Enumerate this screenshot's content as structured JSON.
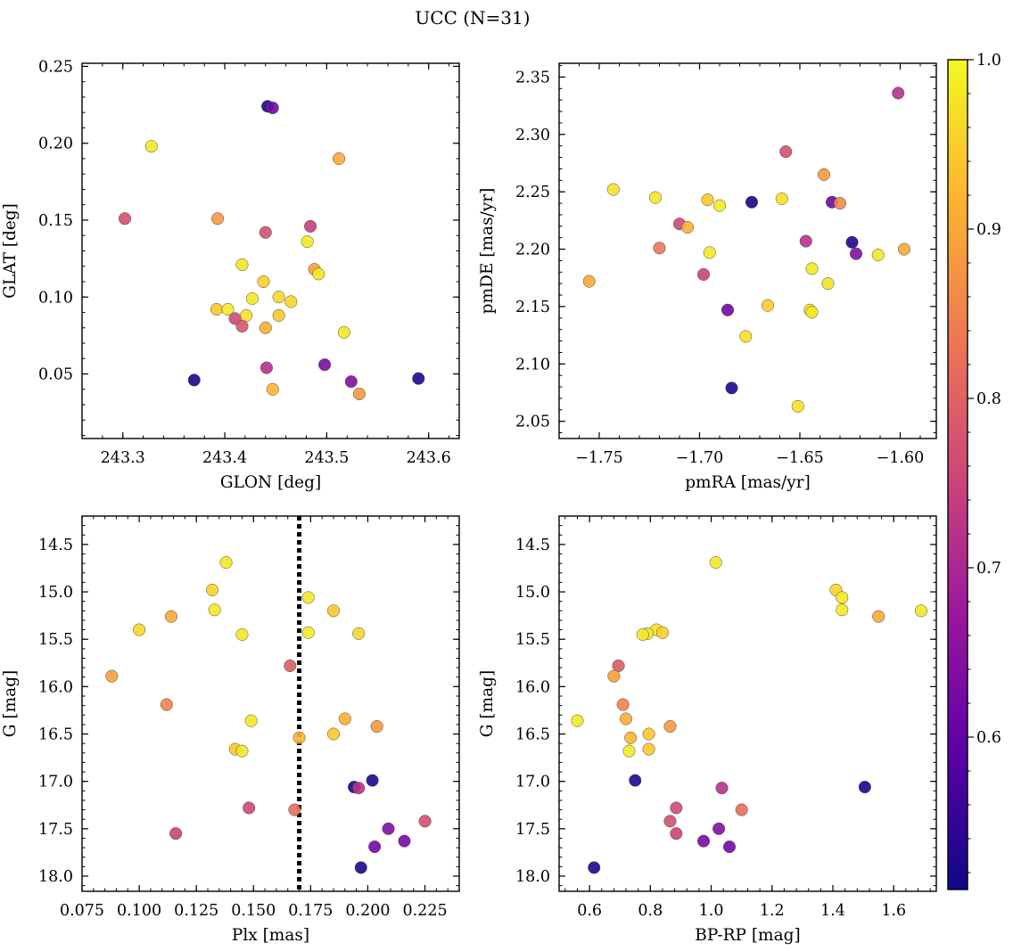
{
  "title": "UCC (N=31)",
  "colorbar": {
    "range": [
      0.51,
      1.0
    ],
    "ticks": [
      0.6,
      0.7,
      0.8,
      0.9,
      1.0
    ],
    "tick_labels": [
      "0.6",
      "0.7",
      "0.8",
      "0.9",
      "1.0"
    ],
    "colormap": [
      "#0d0887",
      "#5c01a6",
      "#9c179e",
      "#cc4778",
      "#ed7953",
      "#fdb42f",
      "#f0f921"
    ]
  },
  "chart_data": [
    {
      "type": "scatter",
      "xlabel": "GLON [deg]",
      "ylabel": "GLAT [deg]",
      "xlim": [
        243.26,
        243.63
      ],
      "ylim": [
        0.008,
        0.252
      ],
      "xticks": [
        243.3,
        243.4,
        243.5,
        243.6
      ],
      "xtick_labels": [
        "243.3",
        "243.4",
        "243.5",
        "243.6"
      ],
      "yticks": [
        0.05,
        0.1,
        0.15,
        0.2,
        0.25
      ],
      "ytick_labels": [
        "0.05",
        "0.10",
        "0.15",
        "0.20",
        "0.25"
      ],
      "points": [
        {
          "x": 243.442,
          "y": 0.224,
          "c": 0.52
        },
        {
          "x": 243.447,
          "y": 0.223,
          "c": 0.62
        },
        {
          "x": 243.328,
          "y": 0.198,
          "c": 0.98
        },
        {
          "x": 243.512,
          "y": 0.19,
          "c": 0.9
        },
        {
          "x": 243.302,
          "y": 0.151,
          "c": 0.77
        },
        {
          "x": 243.393,
          "y": 0.151,
          "c": 0.88
        },
        {
          "x": 243.484,
          "y": 0.146,
          "c": 0.74
        },
        {
          "x": 243.44,
          "y": 0.142,
          "c": 0.77
        },
        {
          "x": 243.481,
          "y": 0.136,
          "c": 0.98
        },
        {
          "x": 243.417,
          "y": 0.121,
          "c": 0.98
        },
        {
          "x": 243.488,
          "y": 0.118,
          "c": 0.89
        },
        {
          "x": 243.492,
          "y": 0.115,
          "c": 0.98
        },
        {
          "x": 243.438,
          "y": 0.11,
          "c": 0.95
        },
        {
          "x": 243.453,
          "y": 0.1,
          "c": 0.96
        },
        {
          "x": 243.427,
          "y": 0.099,
          "c": 0.98
        },
        {
          "x": 243.465,
          "y": 0.097,
          "c": 0.96
        },
        {
          "x": 243.392,
          "y": 0.092,
          "c": 0.94
        },
        {
          "x": 243.403,
          "y": 0.092,
          "c": 0.98
        },
        {
          "x": 243.421,
          "y": 0.088,
          "c": 0.97
        },
        {
          "x": 243.453,
          "y": 0.088,
          "c": 0.94
        },
        {
          "x": 243.41,
          "y": 0.086,
          "c": 0.76
        },
        {
          "x": 243.417,
          "y": 0.081,
          "c": 0.78
        },
        {
          "x": 243.44,
          "y": 0.08,
          "c": 0.91
        },
        {
          "x": 243.517,
          "y": 0.077,
          "c": 0.98
        },
        {
          "x": 243.498,
          "y": 0.056,
          "c": 0.63
        },
        {
          "x": 243.441,
          "y": 0.054,
          "c": 0.72
        },
        {
          "x": 243.37,
          "y": 0.046,
          "c": 0.52
        },
        {
          "x": 243.524,
          "y": 0.045,
          "c": 0.64
        },
        {
          "x": 243.59,
          "y": 0.047,
          "c": 0.53
        },
        {
          "x": 243.447,
          "y": 0.04,
          "c": 0.92
        },
        {
          "x": 243.532,
          "y": 0.037,
          "c": 0.88
        }
      ]
    },
    {
      "type": "scatter",
      "xlabel": "pmRA [mas/yr]",
      "ylabel": "pmDE [mas/yr]",
      "xlim": [
        -1.77,
        -1.582
      ],
      "ylim": [
        2.035,
        2.362
      ],
      "xticks": [
        -1.75,
        -1.7,
        -1.65,
        -1.6
      ],
      "xtick_labels": [
        "−1.75",
        "−1.70",
        "−1.65",
        "−1.60"
      ],
      "yticks": [
        2.05,
        2.1,
        2.15,
        2.2,
        2.25,
        2.3,
        2.35
      ],
      "ytick_labels": [
        "2.05",
        "2.10",
        "2.15",
        "2.20",
        "2.25",
        "2.30",
        "2.35"
      ],
      "points": [
        {
          "x": -1.601,
          "y": 2.336,
          "c": 0.72
        },
        {
          "x": -1.657,
          "y": 2.285,
          "c": 0.77
        },
        {
          "x": -1.638,
          "y": 2.265,
          "c": 0.88
        },
        {
          "x": -1.743,
          "y": 2.252,
          "c": 0.97
        },
        {
          "x": -1.722,
          "y": 2.245,
          "c": 0.98
        },
        {
          "x": -1.659,
          "y": 2.244,
          "c": 0.97
        },
        {
          "x": -1.696,
          "y": 2.243,
          "c": 0.94
        },
        {
          "x": -1.674,
          "y": 2.241,
          "c": 0.52
        },
        {
          "x": -1.634,
          "y": 2.241,
          "c": 0.62
        },
        {
          "x": -1.63,
          "y": 2.24,
          "c": 0.86
        },
        {
          "x": -1.69,
          "y": 2.238,
          "c": 0.98
        },
        {
          "x": -1.71,
          "y": 2.222,
          "c": 0.76
        },
        {
          "x": -1.706,
          "y": 2.219,
          "c": 0.91
        },
        {
          "x": -1.647,
          "y": 2.207,
          "c": 0.72
        },
        {
          "x": -1.624,
          "y": 2.206,
          "c": 0.53
        },
        {
          "x": -1.72,
          "y": 2.201,
          "c": 0.83
        },
        {
          "x": -1.598,
          "y": 2.2,
          "c": 0.9
        },
        {
          "x": -1.695,
          "y": 2.197,
          "c": 0.98
        },
        {
          "x": -1.622,
          "y": 2.196,
          "c": 0.64
        },
        {
          "x": -1.611,
          "y": 2.195,
          "c": 0.98
        },
        {
          "x": -1.644,
          "y": 2.183,
          "c": 0.98
        },
        {
          "x": -1.698,
          "y": 2.178,
          "c": 0.75
        },
        {
          "x": -1.755,
          "y": 2.172,
          "c": 0.9
        },
        {
          "x": -1.636,
          "y": 2.17,
          "c": 0.97
        },
        {
          "x": -1.666,
          "y": 2.151,
          "c": 0.95
        },
        {
          "x": -1.686,
          "y": 2.147,
          "c": 0.62
        },
        {
          "x": -1.645,
          "y": 2.147,
          "c": 0.97
        },
        {
          "x": -1.644,
          "y": 2.145,
          "c": 0.98
        },
        {
          "x": -1.677,
          "y": 2.124,
          "c": 0.97
        },
        {
          "x": -1.684,
          "y": 2.079,
          "c": 0.53
        },
        {
          "x": -1.651,
          "y": 2.063,
          "c": 0.97
        }
      ]
    },
    {
      "type": "scatter",
      "xlabel": "Plx [mas]",
      "ylabel": "G [mag]",
      "xlim": [
        0.075,
        0.24
      ],
      "ylim": [
        18.16,
        14.2
      ],
      "reference_line_x": 0.17,
      "xticks": [
        0.075,
        0.1,
        0.125,
        0.15,
        0.175,
        0.2,
        0.225
      ],
      "xtick_labels": [
        "0.075",
        "0.100",
        "0.125",
        "0.150",
        "0.175",
        "0.200",
        "0.225"
      ],
      "yticks": [
        14.5,
        15.0,
        15.5,
        16.0,
        16.5,
        17.0,
        17.5,
        18.0
      ],
      "ytick_labels": [
        "14.5",
        "15.0",
        "15.5",
        "16.0",
        "16.5",
        "17.0",
        "17.5",
        "18.0"
      ],
      "points": [
        {
          "x": 0.138,
          "y": 14.69,
          "c": 0.98
        },
        {
          "x": 0.132,
          "y": 14.98,
          "c": 0.96
        },
        {
          "x": 0.174,
          "y": 15.06,
          "c": 0.98
        },
        {
          "x": 0.133,
          "y": 15.19,
          "c": 0.98
        },
        {
          "x": 0.185,
          "y": 15.2,
          "c": 0.94
        },
        {
          "x": 0.114,
          "y": 15.26,
          "c": 0.9
        },
        {
          "x": 0.1,
          "y": 15.4,
          "c": 0.96
        },
        {
          "x": 0.174,
          "y": 15.43,
          "c": 0.98
        },
        {
          "x": 0.196,
          "y": 15.44,
          "c": 0.96
        },
        {
          "x": 0.145,
          "y": 15.45,
          "c": 0.98
        },
        {
          "x": 0.166,
          "y": 15.78,
          "c": 0.79
        },
        {
          "x": 0.088,
          "y": 15.89,
          "c": 0.89
        },
        {
          "x": 0.112,
          "y": 16.19,
          "c": 0.85
        },
        {
          "x": 0.19,
          "y": 16.34,
          "c": 0.91
        },
        {
          "x": 0.149,
          "y": 16.36,
          "c": 0.98
        },
        {
          "x": 0.204,
          "y": 16.42,
          "c": 0.88
        },
        {
          "x": 0.185,
          "y": 16.5,
          "c": 0.94
        },
        {
          "x": 0.17,
          "y": 16.54,
          "c": 0.92
        },
        {
          "x": 0.142,
          "y": 16.66,
          "c": 0.94
        },
        {
          "x": 0.145,
          "y": 16.68,
          "c": 0.98
        },
        {
          "x": 0.202,
          "y": 16.99,
          "c": 0.53
        },
        {
          "x": 0.194,
          "y": 17.06,
          "c": 0.52
        },
        {
          "x": 0.196,
          "y": 17.07,
          "c": 0.72
        },
        {
          "x": 0.148,
          "y": 17.28,
          "c": 0.76
        },
        {
          "x": 0.168,
          "y": 17.3,
          "c": 0.82
        },
        {
          "x": 0.225,
          "y": 17.42,
          "c": 0.77
        },
        {
          "x": 0.209,
          "y": 17.5,
          "c": 0.64
        },
        {
          "x": 0.116,
          "y": 17.55,
          "c": 0.75
        },
        {
          "x": 0.216,
          "y": 17.63,
          "c": 0.63
        },
        {
          "x": 0.203,
          "y": 17.69,
          "c": 0.62
        },
        {
          "x": 0.197,
          "y": 17.91,
          "c": 0.53
        }
      ]
    },
    {
      "type": "scatter",
      "xlabel": "BP-RP [mag]",
      "ylabel": "G [mag]",
      "xlim": [
        0.5,
        1.74
      ],
      "ylim": [
        18.16,
        14.2
      ],
      "xticks": [
        0.6,
        0.8,
        1.0,
        1.2,
        1.4,
        1.6
      ],
      "xtick_labels": [
        "0.6",
        "0.8",
        "1.0",
        "1.2",
        "1.4",
        "1.6"
      ],
      "yticks": [
        14.5,
        15.0,
        15.5,
        16.0,
        16.5,
        17.0,
        17.5,
        18.0
      ],
      "ytick_labels": [
        "14.5",
        "15.0",
        "15.5",
        "16.0",
        "16.5",
        "17.0",
        "17.5",
        "18.0"
      ],
      "points": [
        {
          "x": 1.015,
          "y": 14.69,
          "c": 0.98
        },
        {
          "x": 1.41,
          "y": 14.98,
          "c": 0.96
        },
        {
          "x": 1.43,
          "y": 15.06,
          "c": 0.98
        },
        {
          "x": 1.43,
          "y": 15.19,
          "c": 0.98
        },
        {
          "x": 1.69,
          "y": 15.2,
          "c": 0.98
        },
        {
          "x": 1.55,
          "y": 15.26,
          "c": 0.9
        },
        {
          "x": 0.82,
          "y": 15.4,
          "c": 0.97
        },
        {
          "x": 0.84,
          "y": 15.43,
          "c": 0.95
        },
        {
          "x": 0.79,
          "y": 15.44,
          "c": 0.98
        },
        {
          "x": 0.775,
          "y": 15.45,
          "c": 0.98
        },
        {
          "x": 0.695,
          "y": 15.78,
          "c": 0.79
        },
        {
          "x": 0.68,
          "y": 15.89,
          "c": 0.89
        },
        {
          "x": 0.71,
          "y": 16.19,
          "c": 0.85
        },
        {
          "x": 0.72,
          "y": 16.34,
          "c": 0.91
        },
        {
          "x": 0.56,
          "y": 16.36,
          "c": 0.98
        },
        {
          "x": 0.865,
          "y": 16.42,
          "c": 0.88
        },
        {
          "x": 0.795,
          "y": 16.5,
          "c": 0.94
        },
        {
          "x": 0.735,
          "y": 16.54,
          "c": 0.92
        },
        {
          "x": 0.795,
          "y": 16.66,
          "c": 0.94
        },
        {
          "x": 0.73,
          "y": 16.68,
          "c": 0.98
        },
        {
          "x": 0.75,
          "y": 16.99,
          "c": 0.53
        },
        {
          "x": 1.505,
          "y": 17.06,
          "c": 0.52
        },
        {
          "x": 1.035,
          "y": 17.07,
          "c": 0.72
        },
        {
          "x": 0.885,
          "y": 17.28,
          "c": 0.76
        },
        {
          "x": 1.1,
          "y": 17.3,
          "c": 0.82
        },
        {
          "x": 0.865,
          "y": 17.42,
          "c": 0.77
        },
        {
          "x": 1.025,
          "y": 17.5,
          "c": 0.64
        },
        {
          "x": 0.885,
          "y": 17.55,
          "c": 0.75
        },
        {
          "x": 0.975,
          "y": 17.63,
          "c": 0.63
        },
        {
          "x": 1.06,
          "y": 17.69,
          "c": 0.62
        },
        {
          "x": 0.615,
          "y": 17.91,
          "c": 0.53
        }
      ]
    }
  ]
}
